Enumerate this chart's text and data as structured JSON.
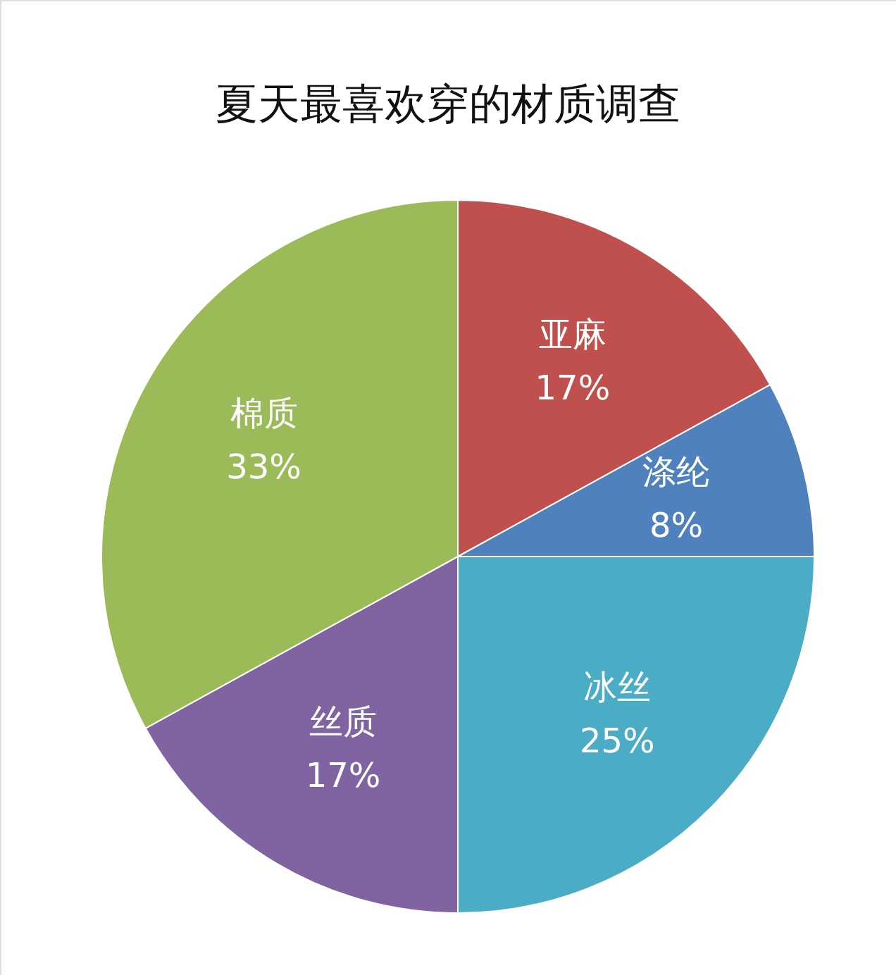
{
  "chart_data": {
    "type": "pie",
    "title": "夏天最喜欢穿的材质调查",
    "categories": [
      "亚麻",
      "涤纶",
      "冰丝",
      "丝质",
      "棉质"
    ],
    "values": [
      17,
      8,
      25,
      17,
      33
    ],
    "value_labels": [
      "17%",
      "8%",
      "25%",
      "17%",
      "33%"
    ],
    "colors": [
      "#c0504d",
      "#4f81bd",
      "#4bacc6",
      "#8064a2",
      "#9bbb59"
    ]
  }
}
